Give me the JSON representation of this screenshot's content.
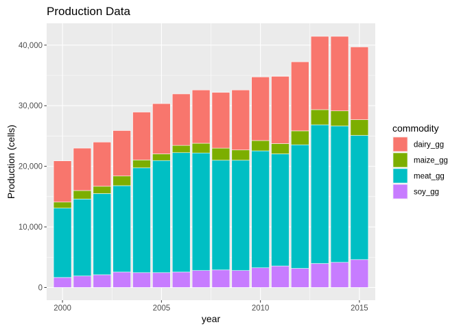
{
  "chart_data": {
    "type": "bar",
    "stacked": true,
    "title": "Production Data",
    "xlabel": "year",
    "ylabel": "Production (cells)",
    "x": [
      2000,
      2001,
      2002,
      2003,
      2004,
      2005,
      2006,
      2007,
      2008,
      2009,
      2010,
      2011,
      2012,
      2013,
      2014,
      2015
    ],
    "x_ticks": [
      2000,
      2005,
      2010,
      2015
    ],
    "x_tick_labels": [
      "2000",
      "2005",
      "2010",
      "2015"
    ],
    "xlim": [
      1999.2,
      2015.8
    ],
    "y_ticks": [
      0,
      10000,
      20000,
      30000,
      40000
    ],
    "y_tick_labels": [
      "0",
      "10,000",
      "20,000",
      "30,000",
      "40,000"
    ],
    "ylim": [
      -2100,
      43600
    ],
    "grid": true,
    "legend": {
      "title": "commodity",
      "position": "right"
    },
    "series": [
      {
        "name": "soy_gg",
        "color": "#C77CFF",
        "values": [
          1650,
          1900,
          2100,
          2550,
          2450,
          2450,
          2550,
          2800,
          2900,
          2800,
          3250,
          3550,
          3150,
          3950,
          4150,
          4600
        ]
      },
      {
        "name": "meat_gg",
        "color": "#00BFC4",
        "values": [
          11450,
          12700,
          13400,
          14250,
          17300,
          18500,
          19700,
          19400,
          18100,
          18200,
          19300,
          18500,
          20400,
          22900,
          22500,
          20500
        ]
      },
      {
        "name": "maize_gg",
        "color": "#7CAE00",
        "values": [
          1000,
          1400,
          1200,
          1600,
          1300,
          1100,
          1200,
          1600,
          2000,
          1700,
          1700,
          1700,
          2300,
          2500,
          2500,
          2600
        ]
      },
      {
        "name": "dairy_gg",
        "color": "#F8766D",
        "values": [
          6800,
          7000,
          7300,
          7500,
          7900,
          8300,
          8500,
          8800,
          9200,
          9900,
          10500,
          11100,
          11400,
          12100,
          12300,
          12000
        ]
      }
    ],
    "legend_order": [
      "dairy_gg",
      "maize_gg",
      "meat_gg",
      "soy_gg"
    ],
    "panel_background": "#EBEBEB",
    "grid_color": "#FFFFFF"
  }
}
